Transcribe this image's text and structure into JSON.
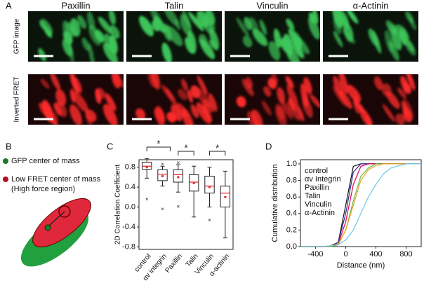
{
  "panels": {
    "a": {
      "label": "A",
      "columns": [
        "Paxillin",
        "Talin",
        "Vinculin",
        "α-Actinin"
      ],
      "rows": [
        "GFP image",
        "Inverted FRET"
      ]
    },
    "b": {
      "label": "B",
      "legend": [
        "GFP center of mass",
        "Low FRET center of mass",
        "(High force region)"
      ]
    }
  },
  "chart_data": [
    {
      "type": "box",
      "panel_label": "C",
      "ylabel": "2D Correlation Coefficient",
      "categories": [
        "control",
        "αv integrin",
        "Paxillin",
        "Talin",
        "Vinculin",
        "α-actinin"
      ],
      "boxes": [
        {
          "min": 0.58,
          "q1": 0.76,
          "median": 0.82,
          "q3": 0.9,
          "max": 0.97,
          "mean": 0.8,
          "outliers": [
            0.15
          ]
        },
        {
          "min": 0.42,
          "q1": 0.53,
          "median": 0.66,
          "q3": 0.75,
          "max": 0.82,
          "mean": 0.62,
          "outliers": [
            -0.05,
            0.85
          ]
        },
        {
          "min": 0.3,
          "q1": 0.5,
          "median": 0.65,
          "q3": 0.75,
          "max": 0.85,
          "mean": 0.6,
          "outliers": [
            0.0,
            0.88
          ]
        },
        {
          "min": -0.2,
          "q1": 0.32,
          "median": 0.5,
          "q3": 0.65,
          "max": 0.82,
          "mean": 0.48,
          "outliers": []
        },
        {
          "min": 0.0,
          "q1": 0.28,
          "median": 0.42,
          "q3": 0.62,
          "max": 0.8,
          "mean": 0.4,
          "outliers": [
            -0.27
          ]
        },
        {
          "min": -0.62,
          "q1": 0.0,
          "median": 0.28,
          "q3": 0.42,
          "max": 0.72,
          "mean": 0.2,
          "outliers": []
        }
      ],
      "annotations": [
        "*",
        "*",
        "*"
      ],
      "ylim": [
        -0.85,
        0.95
      ],
      "yticks": [
        -0.8,
        -0.4,
        {
          "value": 0,
          "label": "0.0"
        },
        0.4,
        0.8
      ]
    },
    {
      "type": "line",
      "panel_label": "D",
      "xlabel": "Distance (nm)",
      "ylabel": "Cumulative distribution",
      "x": [
        -600,
        -400,
        -300,
        -200,
        -100,
        0,
        100,
        200,
        300,
        400,
        500,
        600,
        800,
        1000
      ],
      "series": [
        {
          "name": "control",
          "color": "#111111",
          "values": [
            0,
            0,
            0,
            0.01,
            0.05,
            0.5,
            0.97,
            1,
            1,
            1,
            1,
            1,
            1,
            1
          ]
        },
        {
          "name": "αv Integrin",
          "color": "#2a2a9a",
          "values": [
            0,
            0,
            0,
            0,
            0.05,
            0.4,
            0.9,
            1,
            1,
            1,
            1,
            1,
            1,
            1
          ]
        },
        {
          "name": "Paxillin",
          "color": "#e0004a",
          "values": [
            0,
            0,
            0,
            0,
            0.03,
            0.3,
            0.75,
            0.97,
            1,
            1,
            1,
            1,
            1,
            1
          ]
        },
        {
          "name": "Talin",
          "color": "#5fbf3f",
          "values": [
            0,
            0,
            0,
            0,
            0.02,
            0.2,
            0.55,
            0.85,
            0.95,
            1,
            1,
            1,
            1,
            1
          ]
        },
        {
          "name": "Vinculin",
          "color": "#f0a020",
          "values": [
            0,
            0,
            0,
            0.01,
            0.03,
            0.2,
            0.5,
            0.8,
            0.93,
            0.98,
            1,
            1,
            1,
            1
          ]
        },
        {
          "name": "α-Actinin",
          "color": "#6fc8e8",
          "values": [
            0,
            0,
            0,
            0.01,
            0.02,
            0.08,
            0.2,
            0.4,
            0.6,
            0.75,
            0.88,
            0.95,
            1,
            1
          ]
        }
      ],
      "xlim": [
        -600,
        1000
      ],
      "xticks": [
        -400,
        0,
        400,
        800
      ],
      "ylim": [
        0,
        1.05
      ],
      "yticks": [
        {
          "value": 0,
          "label": "0.0"
        },
        0.2,
        0.4,
        0.6,
        0.8,
        {
          "value": 1,
          "label": "1.0"
        }
      ]
    }
  ]
}
